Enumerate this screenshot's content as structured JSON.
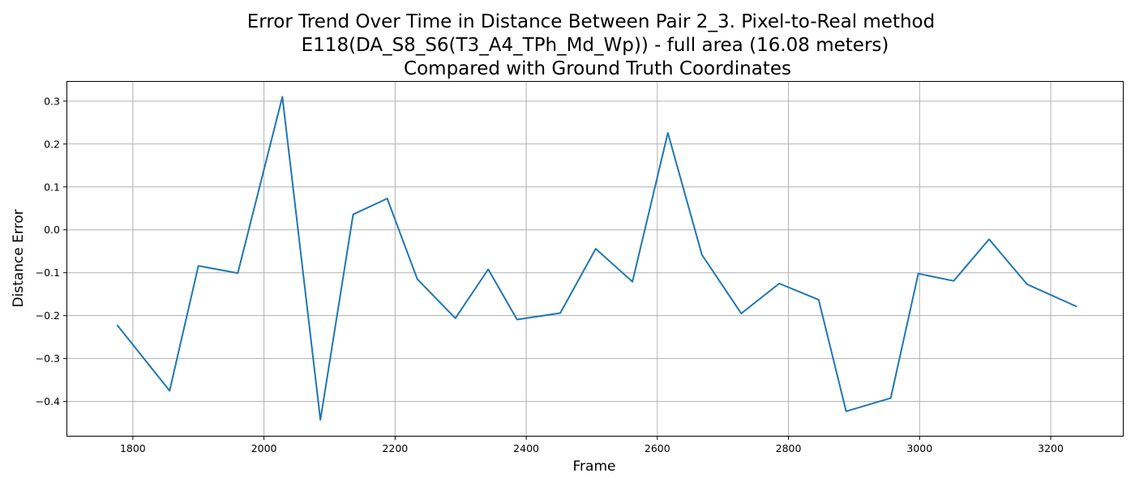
{
  "chart_data": {
    "type": "line",
    "title": [
      "Error Trend Over Time in Distance Between Pair 2_3. Pixel-to-Real method",
      "E118(DA_S8_S6(T3_A4_TPh_Md_Wp)) - full area (16.08 meters)",
      "Compared with Ground Truth Coordinates"
    ],
    "xlabel": "Frame",
    "ylabel": "Distance Error",
    "xlim": [
      1700,
      3310
    ],
    "ylim": [
      -0.48,
      0.345
    ],
    "xticks": [
      1800,
      2000,
      2200,
      2400,
      2600,
      2800,
      3000,
      3200
    ],
    "yticks": [
      -0.4,
      -0.3,
      -0.2,
      -0.1,
      0.0,
      0.1,
      0.2,
      0.3
    ],
    "xtick_labels": [
      "1800",
      "2000",
      "2200",
      "2400",
      "2600",
      "2800",
      "3000",
      "3200"
    ],
    "ytick_labels": [
      "−0.4",
      "−0.3",
      "−0.2",
      "−0.1",
      "0.0",
      "0.1",
      "0.2",
      "0.3"
    ],
    "grid": true,
    "series": [
      {
        "color": "#1f77b4",
        "x": [
          1776,
          1856,
          1900,
          1960,
          2028,
          2086,
          2136,
          2188,
          2234,
          2292,
          2342,
          2386,
          2452,
          2506,
          2562,
          2616,
          2668,
          2728,
          2786,
          2846,
          2888,
          2956,
          2998,
          3052,
          3106,
          3164,
          3240
        ],
        "y": [
          -0.222,
          -0.375,
          -0.084,
          -0.101,
          0.31,
          -0.443,
          0.036,
          0.073,
          -0.115,
          -0.206,
          -0.092,
          -0.209,
          -0.194,
          -0.044,
          -0.121,
          0.226,
          -0.058,
          -0.195,
          -0.125,
          -0.163,
          -0.423,
          -0.392,
          -0.102,
          -0.119,
          -0.022,
          -0.127,
          -0.179
        ]
      }
    ]
  }
}
